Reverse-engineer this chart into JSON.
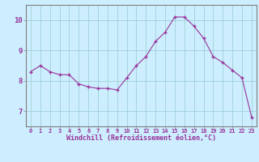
{
  "x": [
    0,
    1,
    2,
    3,
    4,
    5,
    6,
    7,
    8,
    9,
    10,
    11,
    12,
    13,
    14,
    15,
    16,
    17,
    18,
    19,
    20,
    21,
    22,
    23
  ],
  "y": [
    8.3,
    8.5,
    8.3,
    8.2,
    8.2,
    7.9,
    7.8,
    7.75,
    7.75,
    7.7,
    8.1,
    8.5,
    8.8,
    9.3,
    9.6,
    10.1,
    10.1,
    9.8,
    9.4,
    8.8,
    8.6,
    8.35,
    8.1,
    6.8
  ],
  "line_color": "#993399",
  "marker": "+",
  "marker_size": 3.5,
  "marker_lw": 1.0,
  "line_width": 0.8,
  "bg_color": "#cceeff",
  "grid_color": "#99cccc",
  "xlabel": "Windchill (Refroidissement éolien,°C)",
  "xlabel_color": "#993399",
  "tick_color": "#993399",
  "ylim": [
    6.5,
    10.5
  ],
  "yticks": [
    7,
    8,
    9,
    10
  ],
  "xlim": [
    -0.5,
    23.5
  ],
  "spine_color": "#808080",
  "xtick_fontsize": 5.0,
  "ytick_fontsize": 6.5,
  "xlabel_fontsize": 6.0
}
